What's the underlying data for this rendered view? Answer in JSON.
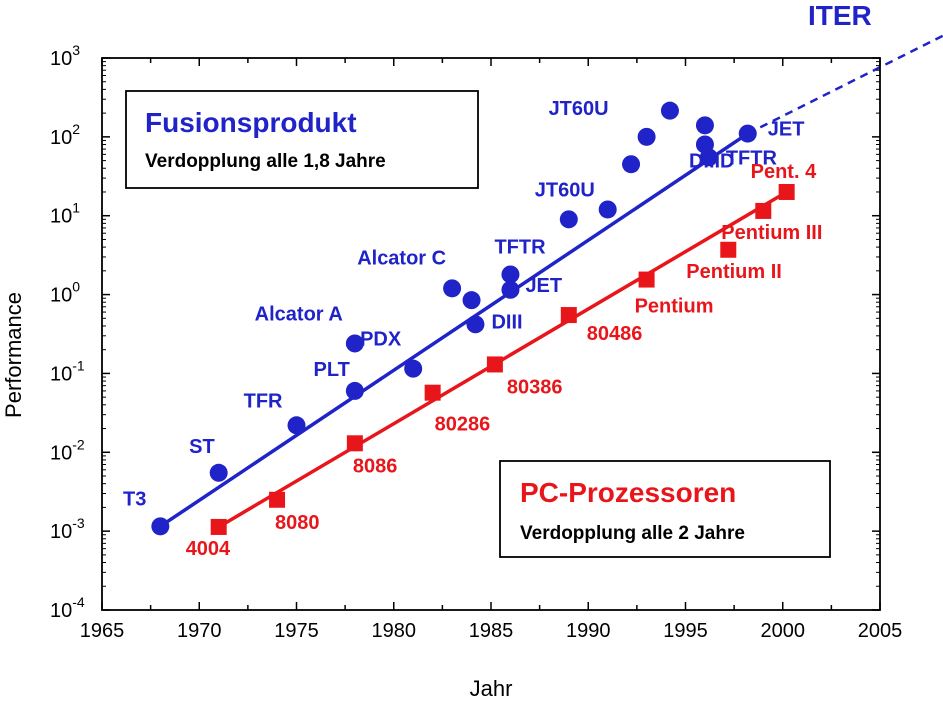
{
  "chart_data": {
    "type": "scatter",
    "xlabel": "Jahr",
    "ylabel": "Performance",
    "xlim": [
      1965,
      2005
    ],
    "ylim_log10": [
      -4,
      3
    ],
    "y_scale": "log",
    "grid": false,
    "x_ticks": [
      "1965",
      "1970",
      "1975",
      "1980",
      "1985",
      "1990",
      "1995",
      "2000",
      "2005"
    ],
    "y_ticks": [
      {
        "exp": -4,
        "base": "10",
        "sup": "-4"
      },
      {
        "exp": -3,
        "base": "10",
        "sup": "-3"
      },
      {
        "exp": -2,
        "base": "10",
        "sup": "-2"
      },
      {
        "exp": -1,
        "base": "10",
        "sup": "-1"
      },
      {
        "exp": 0,
        "base": "10",
        "sup": "0"
      },
      {
        "exp": 1,
        "base": "10",
        "sup": "1"
      },
      {
        "exp": 2,
        "base": "10",
        "sup": "2"
      },
      {
        "exp": 3,
        "base": "10",
        "sup": "3"
      }
    ],
    "series": [
      {
        "name": "Fusionsprodukt",
        "color": "#1f23c8",
        "marker": "circle",
        "subtitle": "Verdopplung alle 1,8 Jahre",
        "trend": {
          "from": [
            1968,
            0.00115
          ],
          "to": [
            1998.2,
            110
          ]
        },
        "extension": {
          "label": "ITER",
          "from": [
            1998.2,
            110
          ],
          "to": [
            2012,
            5600
          ]
        },
        "points": [
          {
            "x": 1968,
            "y": 0.00115,
            "label": "T3"
          },
          {
            "x": 1971,
            "y": 0.0055,
            "label": "ST"
          },
          {
            "x": 1975,
            "y": 0.022,
            "label": "TFR"
          },
          {
            "x": 1978,
            "y": 0.06,
            "label": "PLT"
          },
          {
            "x": 1978,
            "y": 0.24,
            "label": "Alcator A"
          },
          {
            "x": 1981,
            "y": 0.115,
            "label": "PDX"
          },
          {
            "x": 1983,
            "y": 1.2,
            "label": "Alcator C"
          },
          {
            "x": 1984,
            "y": 0.85,
            "label": ""
          },
          {
            "x": 1984.2,
            "y": 0.42,
            "label": "DIII"
          },
          {
            "x": 1986,
            "y": 1.8,
            "label": "TFTR"
          },
          {
            "x": 1986,
            "y": 1.15,
            "label": "JET"
          },
          {
            "x": 1989,
            "y": 9,
            "label": "JT60U"
          },
          {
            "x": 1991,
            "y": 12,
            "label": ""
          },
          {
            "x": 1992.2,
            "y": 45,
            "label": ""
          },
          {
            "x": 1993,
            "y": 100,
            "label": "JT60U"
          },
          {
            "x": 1994.2,
            "y": 215,
            "label": ""
          },
          {
            "x": 1996,
            "y": 140,
            "label": ""
          },
          {
            "x": 1996,
            "y": 80,
            "label": "DIIID"
          },
          {
            "x": 1996.2,
            "y": 55,
            "label": "TFTR"
          },
          {
            "x": 1998.2,
            "y": 110,
            "label": "JET"
          }
        ]
      },
      {
        "name": "PC-Prozessoren",
        "color": "#e8161b",
        "marker": "square",
        "subtitle": "Verdopplung alle 2 Jahre",
        "trend": {
          "from": [
            1971,
            0.00113
          ],
          "to": [
            2000.2,
            20
          ]
        },
        "points": [
          {
            "x": 1971,
            "y": 0.00113,
            "label": "4004"
          },
          {
            "x": 1974,
            "y": 0.0025,
            "label": "8080"
          },
          {
            "x": 1978,
            "y": 0.013,
            "label": "8086"
          },
          {
            "x": 1982,
            "y": 0.057,
            "label": "80286"
          },
          {
            "x": 1985.2,
            "y": 0.13,
            "label": "80386"
          },
          {
            "x": 1989,
            "y": 0.55,
            "label": "80486"
          },
          {
            "x": 1993,
            "y": 1.55,
            "label": "Pentium"
          },
          {
            "x": 1997.2,
            "y": 3.7,
            "label": "Pentium II"
          },
          {
            "x": 1999,
            "y": 11.5,
            "label": "Pentium III"
          },
          {
            "x": 2000.2,
            "y": 20,
            "label": "Pent. 4"
          }
        ]
      }
    ]
  }
}
